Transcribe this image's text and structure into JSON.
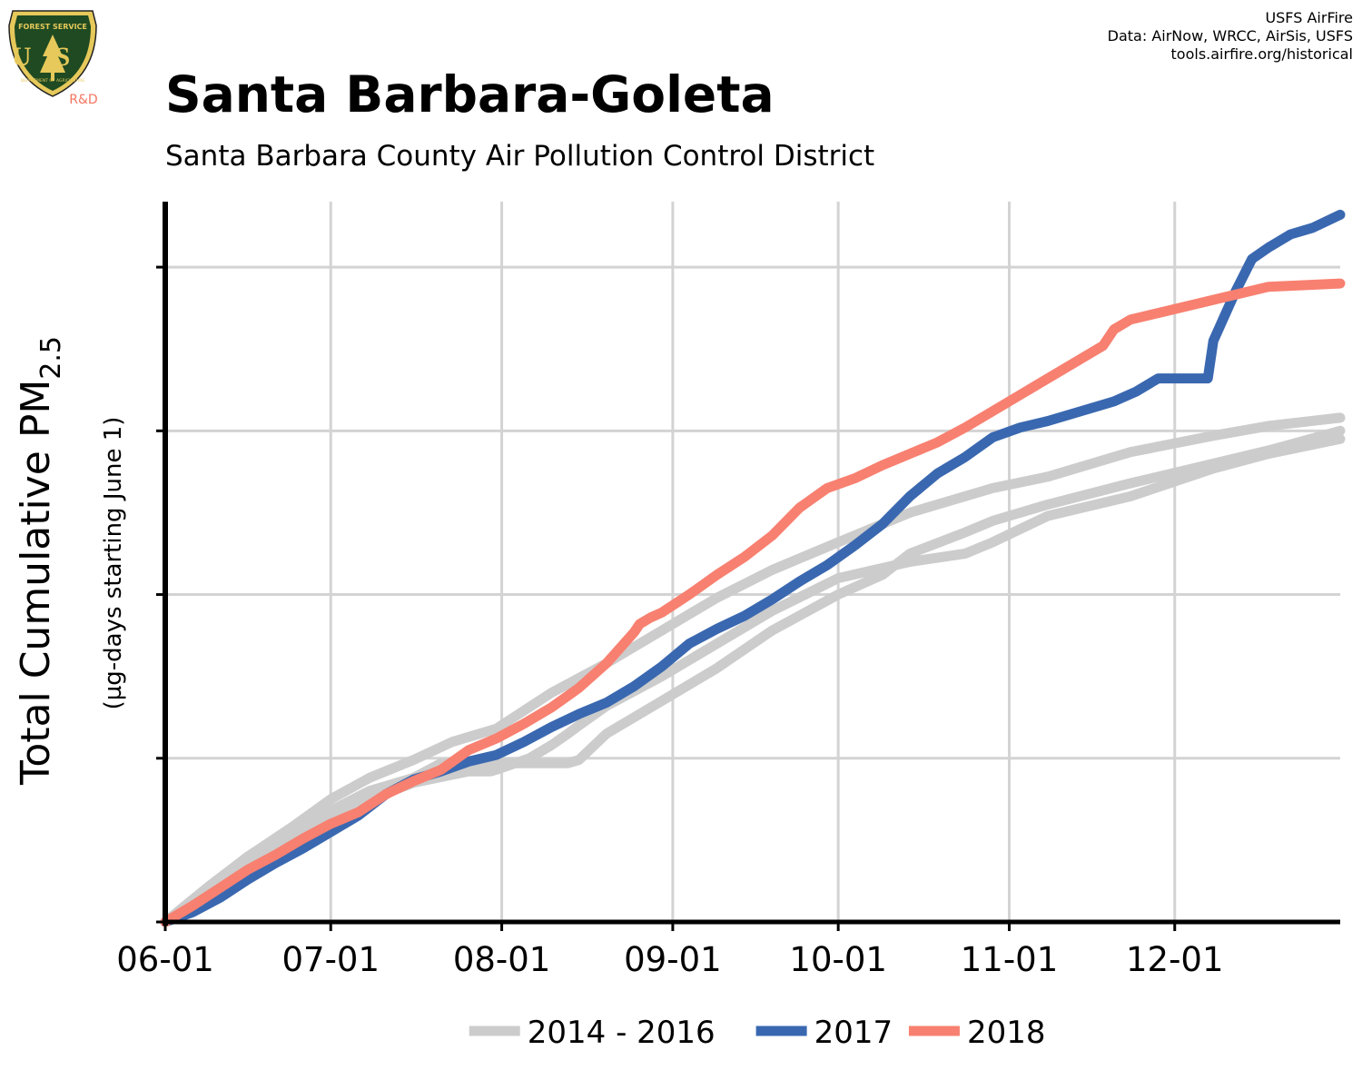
{
  "header": {
    "title": "Santa Barbara-Goleta",
    "subtitle": "Santa Barbara County Air Pollution Control District",
    "credits": [
      "USFS AirFire",
      "Data: AirNow, WRCC, AirSis, USFS",
      "tools.airfire.org/historical"
    ],
    "logo": {
      "top_text": "FOREST SERVICE",
      "letters": "US",
      "bottom_text": "DEPARTMENT OF AGRICULTURE",
      "tag": "R&D"
    }
  },
  "colors": {
    "historical": "#cccccc",
    "y2017": "#3a68b0",
    "y2018": "#f88070",
    "grid": "#d3d3d3",
    "axis": "#000000",
    "logo_shield": "#1f4a22",
    "logo_gold": "#e6c95a",
    "logo_tag": "#f47560"
  },
  "chart_data": {
    "type": "line",
    "ylabel": "Total Cumulative PM2.5",
    "ylabel_main": "Total Cumulative PM",
    "ylabel_sub": "2.5",
    "ylabel2": "(µg-days starting June 1)",
    "x_tick_labels": [
      "06-01",
      "07-01",
      "08-01",
      "09-01",
      "10-01",
      "11-01",
      "12-01"
    ],
    "x_tick_days": [
      0,
      30,
      61,
      92,
      122,
      153,
      183
    ],
    "xlim": [
      0,
      213
    ],
    "ylim": [
      0,
      4.4
    ],
    "y_ticks": [
      1,
      2,
      3,
      4
    ],
    "y_tick_labels_shown": false,
    "grid": true,
    "legend_position": "bottom",
    "series": [
      {
        "name": "2014 - 2016",
        "key": "historical",
        "x": [
          0,
          8,
          15,
          23,
          30,
          37,
          45,
          52,
          60,
          70,
          80,
          90,
          100,
          110,
          122,
          135,
          150,
          160,
          175,
          190,
          200,
          213
        ],
        "y": [
          0,
          0.22,
          0.4,
          0.58,
          0.75,
          0.88,
          0.99,
          1.1,
          1.18,
          1.4,
          1.58,
          1.78,
          1.98,
          2.15,
          2.32,
          2.5,
          2.65,
          2.72,
          2.87,
          2.97,
          3.03,
          3.08
        ]
      },
      {
        "name": "2014 - 2016",
        "key": "historical",
        "x": [
          0,
          8,
          15,
          23,
          30,
          37,
          45,
          55,
          59,
          60,
          66,
          70,
          73,
          75,
          80,
          90,
          100,
          110,
          122,
          135,
          145,
          150,
          160,
          175,
          190,
          200,
          213
        ],
        "y": [
          0,
          0.2,
          0.36,
          0.5,
          0.63,
          0.75,
          0.85,
          0.92,
          0.92,
          0.93,
          1.0,
          1.08,
          1.15,
          1.2,
          1.32,
          1.5,
          1.7,
          1.9,
          2.1,
          2.2,
          2.25,
          2.32,
          2.48,
          2.6,
          2.77,
          2.86,
          2.95
        ]
      },
      {
        "name": "2014 - 2016",
        "key": "historical",
        "x": [
          0,
          8,
          15,
          23,
          30,
          37,
          45,
          50,
          58,
          60,
          62,
          65,
          70,
          73,
          75,
          80,
          90,
          100,
          110,
          122,
          130,
          135,
          145,
          150,
          160,
          175,
          190,
          200,
          213
        ],
        "y": [
          0,
          0.22,
          0.4,
          0.55,
          0.68,
          0.8,
          0.88,
          0.97,
          0.97,
          0.97,
          0.97,
          0.97,
          0.97,
          0.97,
          0.99,
          1.15,
          1.35,
          1.55,
          1.78,
          2.0,
          2.12,
          2.25,
          2.38,
          2.45,
          2.55,
          2.68,
          2.8,
          2.88,
          3.0
        ]
      },
      {
        "name": "2017",
        "key": "y2017",
        "x": [
          0,
          5,
          10,
          15,
          20,
          25,
          30,
          35,
          40,
          45,
          50,
          55,
          60,
          65,
          70,
          75,
          80,
          85,
          90,
          95,
          100,
          105,
          110,
          115,
          120,
          125,
          130,
          135,
          140,
          145,
          150,
          155,
          160,
          165,
          170,
          172,
          176,
          180,
          188,
          189,
          190,
          192,
          194,
          197,
          200,
          204,
          208,
          213
        ],
        "y": [
          0,
          0.06,
          0.15,
          0.26,
          0.36,
          0.45,
          0.55,
          0.65,
          0.78,
          0.87,
          0.92,
          0.98,
          1.02,
          1.1,
          1.19,
          1.27,
          1.34,
          1.44,
          1.56,
          1.7,
          1.79,
          1.87,
          1.97,
          2.08,
          2.18,
          2.3,
          2.43,
          2.6,
          2.74,
          2.84,
          2.96,
          3.02,
          3.06,
          3.11,
          3.16,
          3.18,
          3.24,
          3.32,
          3.32,
          3.32,
          3.55,
          3.7,
          3.85,
          4.05,
          4.12,
          4.2,
          4.24,
          4.32
        ]
      },
      {
        "name": "2018",
        "key": "y2018",
        "x": [
          0,
          5,
          10,
          15,
          20,
          25,
          30,
          35,
          40,
          45,
          50,
          55,
          60,
          65,
          70,
          75,
          80,
          85,
          86,
          88,
          90,
          95,
          100,
          105,
          110,
          115,
          120,
          125,
          130,
          135,
          140,
          145,
          150,
          155,
          160,
          165,
          170,
          172,
          175,
          180,
          190,
          200,
          213
        ],
        "y": [
          0,
          0.1,
          0.21,
          0.32,
          0.41,
          0.51,
          0.6,
          0.67,
          0.78,
          0.86,
          0.93,
          1.05,
          1.12,
          1.21,
          1.31,
          1.43,
          1.58,
          1.77,
          1.82,
          1.86,
          1.89,
          2.0,
          2.12,
          2.23,
          2.36,
          2.53,
          2.65,
          2.71,
          2.79,
          2.86,
          2.93,
          3.02,
          3.12,
          3.22,
          3.32,
          3.42,
          3.52,
          3.62,
          3.68,
          3.72,
          3.8,
          3.88,
          3.9
        ]
      }
    ]
  }
}
